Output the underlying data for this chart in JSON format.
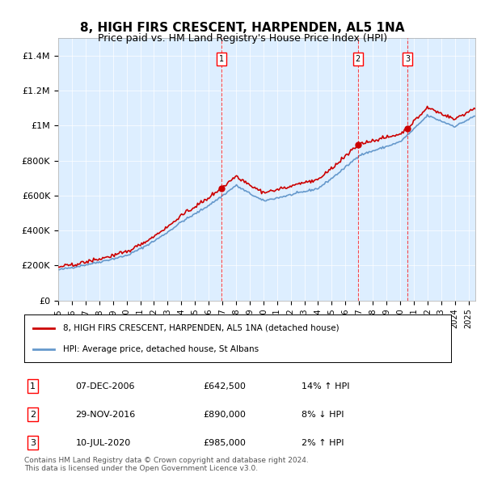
{
  "title": "8, HIGH FIRS CRESCENT, HARPENDEN, AL5 1NA",
  "subtitle": "Price paid vs. HM Land Registry's House Price Index (HPI)",
  "ylabel_ticks": [
    "£0",
    "£200K",
    "£400K",
    "£600K",
    "£800K",
    "£1M",
    "£1.2M",
    "£1.4M"
  ],
  "ylabel_values": [
    0,
    200000,
    400000,
    600000,
    800000,
    1000000,
    1200000,
    1400000
  ],
  "ylim": [
    0,
    1500000
  ],
  "xlim_start": 1995.5,
  "xlim_end": 2025.5,
  "background_color": "#ddeeff",
  "plot_bg": "#ddeeff",
  "red_line_color": "#cc0000",
  "blue_line_color": "#6699cc",
  "sale_dates": [
    2006.92,
    2016.91,
    2020.53
  ],
  "sale_prices": [
    642500,
    890000,
    985000
  ],
  "sale_labels": [
    "1",
    "2",
    "3"
  ],
  "legend_label_red": "8, HIGH FIRS CRESCENT, HARPENDEN, AL5 1NA (detached house)",
  "legend_label_blue": "HPI: Average price, detached house, St Albans",
  "table_data": [
    [
      "1",
      "07-DEC-2006",
      "£642,500",
      "14% ↑ HPI"
    ],
    [
      "2",
      "29-NOV-2016",
      "£890,000",
      "8% ↓ HPI"
    ],
    [
      "3",
      "10-JUL-2020",
      "£985,000",
      "2% ↑ HPI"
    ]
  ],
  "footer": "Contains HM Land Registry data © Crown copyright and database right 2024.\nThis data is licensed under the Open Government Licence v3.0.",
  "xticks": [
    1995,
    1996,
    1997,
    1998,
    1999,
    2000,
    2001,
    2002,
    2003,
    2004,
    2005,
    2006,
    2007,
    2008,
    2009,
    2010,
    2011,
    2012,
    2013,
    2014,
    2015,
    2016,
    2017,
    2018,
    2019,
    2020,
    2021,
    2022,
    2023,
    2024,
    2025
  ]
}
